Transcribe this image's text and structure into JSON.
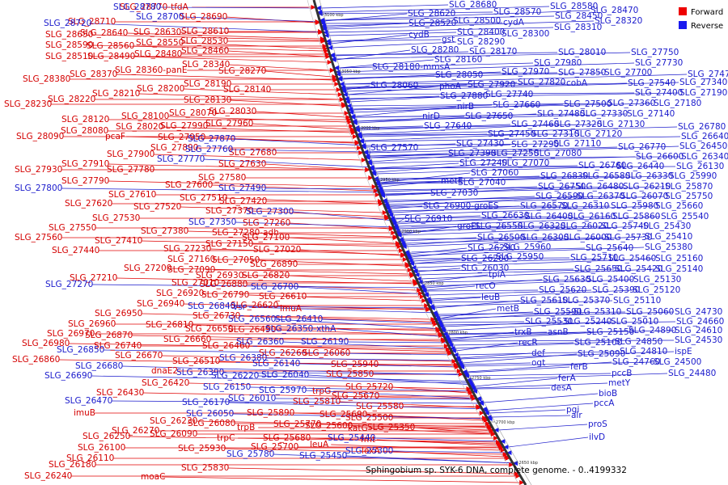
{
  "caption": "Sphingobium sp. SYK-6 DNA, complete genome. - 0..4199332",
  "legend": [
    {
      "label": "Forward",
      "color": "#ee0000"
    },
    {
      "label": "Reverse",
      "color": "#1a1aee"
    }
  ],
  "ticks": [
    "3100 kbp",
    "3050 kbp",
    "3000 kbp",
    "2950 kbp",
    "2900 kbp",
    "2850 kbp",
    "2800 kbp",
    "2750 kbp",
    "2700 kbp",
    "2650 kbp"
  ],
  "forward_labels": [
    [
      "SLG_28770-tfdA",
      148,
      12
    ],
    [
      "SLG_28690",
      222,
      24
    ],
    [
      "SLG_28710",
      84,
      30
    ],
    [
      "SLG_28640",
      99,
      44
    ],
    [
      "SLG_28610",
      224,
      42
    ],
    [
      "SLG_28650",
      56,
      46
    ],
    [
      "SLG_28630",
      165,
      43
    ],
    [
      "SLG_28550",
      168,
      56
    ],
    [
      "SLG_28530",
      223,
      54
    ],
    [
      "SLG_28590",
      56,
      59
    ],
    [
      "SLG_28560",
      107,
      60
    ],
    [
      "SLG_28460",
      224,
      66
    ],
    [
      "SLG_28510",
      56,
      73
    ],
    [
      "SLG_28490",
      108,
      73
    ],
    [
      "SLG_28480",
      166,
      70
    ],
    [
      "SLG_28340",
      225,
      83
    ],
    [
      "SLG_28360-panE",
      142,
      90
    ],
    [
      "SLG_28270",
      270,
      91
    ],
    [
      "SLG_28380",
      28,
      101
    ],
    [
      "SLG_28370",
      86,
      95
    ],
    [
      "SLG_28190",
      227,
      107
    ],
    [
      "SLG_28200",
      169,
      113
    ],
    [
      "SLG_28140",
      276,
      114
    ],
    [
      "SLG_28210",
      114,
      119
    ],
    [
      "SLG_28220",
      59,
      126
    ],
    [
      "SLG_28130",
      227,
      127
    ],
    [
      "SLG_28230",
      5,
      132
    ],
    [
      "SLG_28030",
      258,
      141
    ],
    [
      "SLG_28070",
      209,
      143
    ],
    [
      "SLG_28100",
      150,
      147
    ],
    [
      "SLG_28120",
      76,
      151
    ],
    [
      "SLG_27960",
      254,
      156
    ],
    [
      "SLG_27990",
      198,
      159
    ],
    [
      "SLG_28020",
      143,
      160
    ],
    [
      "SLG_28080",
      75,
      165
    ],
    [
      "pcaF",
      130,
      172
    ],
    [
      "SLG_28090",
      20,
      172
    ],
    [
      "SLG_27950",
      195,
      173
    ],
    [
      "SLG_27890",
      186,
      186
    ],
    [
      "SLG_27900",
      132,
      194
    ],
    [
      "SLG_27680",
      283,
      192
    ],
    [
      "SLG_27910",
      76,
      206
    ],
    [
      "SLG_27780",
      132,
      213
    ],
    [
      "SLG_27630",
      270,
      206
    ],
    [
      "SLG_27930",
      18,
      213
    ],
    [
      "SLG_27790",
      76,
      227
    ],
    [
      "SLG_27580",
      245,
      223
    ],
    [
      "SLG_27600",
      204,
      232
    ],
    [
      "SLG_27610",
      134,
      244
    ],
    [
      "SLG_27510",
      222,
      248
    ],
    [
      "SLG_27620",
      80,
      255
    ],
    [
      "SLG_27520",
      165,
      259
    ],
    [
      "SLG_27420",
      271,
      252
    ],
    [
      "SLG_27370",
      254,
      264
    ],
    [
      "SLG_27530",
      114,
      273
    ],
    [
      "SLG_27260",
      300,
      279
    ],
    [
      "SLG_27550",
      60,
      285
    ],
    [
      "SLG_27380",
      174,
      289
    ],
    [
      "SLG_27560",
      18,
      297
    ],
    [
      "SLG_27410",
      117,
      301
    ],
    [
      "SLG_27280-adh",
      262,
      291
    ],
    [
      "SLG_27100",
      299,
      297
    ],
    [
      "SLG_27150",
      254,
      305
    ],
    [
      "SLG_27230",
      202,
      311
    ],
    [
      "SLG_27440",
      64,
      313
    ],
    [
      "SLG_27020",
      313,
      312
    ],
    [
      "SLG_27160",
      207,
      324
    ],
    [
      "SLG_27050",
      262,
      325
    ],
    [
      "SLG_26890",
      309,
      330
    ],
    [
      "SLG_27200",
      153,
      335
    ],
    [
      "SLG_27090",
      207,
      337
    ],
    [
      "SLG_27210",
      86,
      347
    ],
    [
      "SLG_26930",
      242,
      344
    ],
    [
      "SLG_26820",
      299,
      344
    ],
    [
      "SLG_27010",
      212,
      353
    ],
    [
      "SLG_26880",
      247,
      355
    ],
    [
      "SLG_26920",
      193,
      366
    ],
    [
      "SLG_26790",
      249,
      368
    ],
    [
      "SLG_26610",
      320,
      370
    ],
    [
      "SLG_26940",
      169,
      379
    ],
    [
      "SLG_26620",
      285,
      381
    ],
    [
      "SLG_26950",
      117,
      391
    ],
    [
      "imuA",
      346,
      385
    ],
    [
      "SLG_26730",
      238,
      394
    ],
    [
      "SLG_26960",
      84,
      404
    ],
    [
      "SLG_26810",
      180,
      405
    ],
    [
      "SLG_26650",
      229,
      410
    ],
    [
      "SLG_26490",
      282,
      411
    ],
    [
      "SLG_26970",
      58,
      416
    ],
    [
      "SLG_26870",
      105,
      418
    ],
    [
      "SLG_26660",
      202,
      423
    ],
    [
      "SLG_26980",
      27,
      428
    ],
    [
      "SLG_26740",
      116,
      431
    ],
    [
      "SLG_26460",
      250,
      431
    ],
    [
      "SLG_26260",
      320,
      440
    ],
    [
      "SLG_26670",
      142,
      443
    ],
    [
      "SLG_26060",
      374,
      440
    ],
    [
      "SLG_26860",
      15,
      448
    ],
    [
      "dnaE2",
      187,
      462
    ],
    [
      "SLG_26510",
      213,
      450
    ],
    [
      "SLG_25940",
      409,
      454
    ],
    [
      "SLG_26420",
      175,
      477
    ],
    [
      "SLG_25850",
      403,
      466
    ],
    [
      "SLG_26430",
      119,
      489
    ],
    [
      "trpG",
      386,
      487
    ],
    [
      "SLG_25720",
      427,
      482
    ],
    [
      "SLG_25670",
      410,
      493
    ],
    [
      "SLG_25810",
      362,
      500
    ],
    [
      "imuB",
      91,
      514
    ],
    [
      "SLG_25890",
      305,
      514
    ],
    [
      "SLG_25580",
      440,
      506
    ],
    [
      "SLG_25690",
      395,
      516
    ],
    [
      "SLG_25500",
      427,
      520
    ],
    [
      "SLG_26230",
      185,
      524
    ],
    [
      "SLG_26080",
      232,
      527
    ],
    [
      "SLG_25770",
      338,
      528
    ],
    [
      "trpB",
      293,
      532
    ],
    [
      "katG",
      430,
      533
    ],
    [
      "SLG_25600",
      377,
      530
    ],
    [
      "SLG_25350",
      454,
      532
    ],
    [
      "SLG_26270",
      138,
      536
    ],
    [
      "SLG_26250",
      102,
      543
    ],
    [
      "SLG_26090",
      185,
      540
    ],
    [
      "SLG_25680",
      325,
      545
    ],
    [
      "trpC",
      268,
      545
    ],
    [
      "fmt",
      446,
      547
    ],
    [
      "SLG_26100",
      96,
      557
    ],
    [
      "SLG_25930",
      220,
      558
    ],
    [
      "SLG_25700",
      310,
      556
    ],
    [
      "leuA",
      383,
      553
    ],
    [
      "SLG_26110",
      82,
      570
    ],
    [
      "lexA",
      447,
      561
    ],
    [
      "SLG_26180",
      60,
      578
    ],
    [
      "SLG_25830",
      224,
      582
    ],
    [
      "SLG_26240",
      30,
      592
    ],
    [
      "moaC",
      174,
      593
    ]
  ],
  "reverse_labels": [
    [
      "SLG_28780",
      140,
      12
    ],
    [
      "SLG_28700",
      168,
      24
    ],
    [
      "SLG_28720",
      54,
      32
    ],
    [
      "SLG_28680",
      555,
      9
    ],
    [
      "SLG_28620",
      504,
      20
    ],
    [
      "SLG_28570",
      610,
      18
    ],
    [
      "SLG_28580",
      680,
      11
    ],
    [
      "SLG_28470",
      730,
      16
    ],
    [
      "SLG_28450",
      686,
      23
    ],
    [
      "SLG_28320",
      735,
      29
    ],
    [
      "SLG_28520",
      505,
      32
    ],
    [
      "SLG_28500",
      560,
      29
    ],
    [
      "cydA",
      622,
      31
    ],
    [
      "SLG_28310",
      685,
      37
    ],
    [
      "cydB",
      505,
      46
    ],
    [
      "SLG_28400",
      565,
      43
    ],
    [
      "SLG_28300",
      620,
      45
    ],
    [
      "gst",
      546,
      52
    ],
    [
      "SLG_28290",
      565,
      55
    ],
    [
      "SLG_28280",
      508,
      65
    ],
    [
      "SLG_28170",
      580,
      67
    ],
    [
      "SLG_28160",
      537,
      77
    ],
    [
      "SLG_28010",
      690,
      68
    ],
    [
      "SLG_27750",
      780,
      68
    ],
    [
      "SLG_28180-mmsA",
      460,
      86
    ],
    [
      "SLG_27980",
      660,
      81
    ],
    [
      "SLG_27730",
      785,
      81
    ],
    [
      "SLG_28050",
      538,
      96
    ],
    [
      "SLG_27970",
      620,
      92
    ],
    [
      "SLG_27850",
      690,
      93
    ],
    [
      "SLG_27700",
      747,
      93
    ],
    [
      "SLG_27470",
      850,
      95
    ],
    [
      "SLG_28060",
      458,
      109
    ],
    [
      "phoA",
      543,
      110
    ],
    [
      "SLG_27920",
      578,
      108
    ],
    [
      "SLG_27820",
      640,
      105
    ],
    [
      "cobA",
      700,
      106
    ],
    [
      "SLG_27540",
      776,
      106
    ],
    [
      "SLG_27340",
      840,
      105
    ],
    [
      "SLG_27880",
      544,
      122
    ],
    [
      "SLG_27740",
      600,
      120
    ],
    [
      "SLG_27400",
      785,
      118
    ],
    [
      "SLG_27190",
      840,
      118
    ],
    [
      "nirB",
      565,
      135
    ],
    [
      "SLG_27660",
      609,
      133
    ],
    [
      "SLG_27500",
      697,
      132
    ],
    [
      "SLG_27360",
      751,
      131
    ],
    [
      "SLG_27180",
      808,
      131
    ],
    [
      "nirD",
      522,
      147
    ],
    [
      "SLG_27650",
      575,
      147
    ],
    [
      "SLG_27480",
      664,
      144
    ],
    [
      "SLG_27330",
      717,
      144
    ],
    [
      "SLG_27140",
      775,
      144
    ],
    [
      "SLG_27640",
      524,
      159
    ],
    [
      "SLG_27460",
      632,
      157
    ],
    [
      "SLG_27320",
      685,
      157
    ],
    [
      "SLG_27130",
      738,
      157
    ],
    [
      "SLG_26780",
      838,
      160
    ],
    [
      "SLG_27450",
      603,
      169
    ],
    [
      "SLG_27310",
      657,
      169
    ],
    [
      "SLG_27120",
      710,
      169
    ],
    [
      "SLG_26640",
      842,
      172
    ],
    [
      "SLG_27570",
      458,
      186
    ],
    [
      "SLG_27430",
      564,
      181
    ],
    [
      "SLG_27290",
      632,
      182
    ],
    [
      "SLG_27110",
      684,
      181
    ],
    [
      "SLG_26770",
      764,
      185
    ],
    [
      "SLG_26450",
      840,
      184
    ],
    [
      "SLG_27390",
      554,
      193
    ],
    [
      "SLG_27250",
      607,
      193
    ],
    [
      "SLG_27080",
      660,
      193
    ],
    [
      "SLG_26600",
      786,
      197
    ],
    [
      "SLG_26340",
      842,
      197
    ],
    [
      "SLG_27240",
      568,
      205
    ],
    [
      "SLG_27070",
      620,
      205
    ],
    [
      "SLG_26760",
      715,
      208
    ],
    [
      "SLG_26440",
      762,
      209
    ],
    [
      "SLG_26130",
      836,
      209
    ],
    [
      "metE",
      545,
      227
    ],
    [
      "SLG_27060",
      582,
      217
    ],
    [
      "SLG_26830",
      668,
      221
    ],
    [
      "SLG_26580",
      720,
      221
    ],
    [
      "SLG_26330",
      773,
      221
    ],
    [
      "SLG_25990",
      827,
      221
    ],
    [
      "SLG_27040",
      566,
      229
    ],
    [
      "SLG_26750",
      665,
      234
    ],
    [
      "SLG_26480",
      712,
      234
    ],
    [
      "SLG_26210",
      770,
      234
    ],
    [
      "SLG_25870",
      822,
      234
    ],
    [
      "SLG_27030",
      532,
      242
    ],
    [
      "SLG_26590",
      662,
      246
    ],
    [
      "SLG_26370",
      713,
      246
    ],
    [
      "SLG_26070",
      767,
      246
    ],
    [
      "SLG_25750",
      822,
      246
    ],
    [
      "SLG_26900-groES",
      523,
      258
    ],
    [
      "SLG_26570",
      643,
      258
    ],
    [
      "SLG_26310",
      694,
      258
    ],
    [
      "SLG_25980",
      755,
      258
    ],
    [
      "SLG_25660",
      810,
      258
    ],
    [
      "SLG_26630",
      595,
      270
    ],
    [
      "SLG_26400",
      649,
      271
    ],
    [
      "SLG_26160",
      702,
      271
    ],
    [
      "SLG_25860",
      757,
      271
    ],
    [
      "SLG_25540",
      817,
      271
    ],
    [
      "SLG_26910",
      500,
      274
    ],
    [
      "groEL",
      565,
      283
    ],
    [
      "SLG_26550",
      587,
      283
    ],
    [
      "SLG_26320",
      640,
      283
    ],
    [
      "SLG_26020",
      693,
      283
    ],
    [
      "SLG_25740",
      743,
      283
    ],
    [
      "SLG_25430",
      795,
      283
    ],
    [
      "SLG_26500",
      590,
      297
    ],
    [
      "SLG_26300",
      644,
      297
    ],
    [
      "SLG_26000",
      697,
      297
    ],
    [
      "SLG_25730",
      747,
      297
    ],
    [
      "SLG_25410",
      797,
      296
    ],
    [
      "SLG_27800",
      18,
      236
    ],
    [
      "SLG_27770",
      194,
      200
    ],
    [
      "SLG_27760",
      229,
      188
    ],
    [
      "SLG_27870",
      232,
      175
    ],
    [
      "SLG_27490",
      270,
      236
    ],
    [
      "SLG_27350",
      233,
      278
    ],
    [
      "SLG_27300",
      304,
      265
    ],
    [
      "SLG_27270",
      56,
      355
    ],
    [
      "SLG_26700",
      310,
      358
    ],
    [
      "SLG_26840",
      232,
      382
    ],
    [
      "vsr",
      288,
      383
    ],
    [
      "SLG_26560",
      282,
      398
    ],
    [
      "SLG_26410",
      340,
      398
    ],
    [
      "SLG_26350-xthA",
      328,
      410
    ],
    [
      "SLG_26380",
      271,
      446
    ],
    [
      "SLG_26360",
      292,
      426
    ],
    [
      "SLG_26190",
      372,
      426
    ],
    [
      "SLG_26850",
      70,
      436
    ],
    [
      "SLG_26680",
      93,
      456
    ],
    [
      "SLG_26140",
      312,
      453
    ],
    [
      "SLG_26690",
      55,
      468
    ],
    [
      "SLG_26390",
      218,
      464
    ],
    [
      "SLG_26220",
      261,
      468
    ],
    [
      "SLG_26040",
      323,
      467
    ],
    [
      "SLG_26150",
      251,
      482
    ],
    [
      "SLG_25970",
      320,
      486
    ],
    [
      "SLG_26470",
      80,
      499
    ],
    [
      "SLG_26170",
      225,
      501
    ],
    [
      "SLG_26010",
      282,
      496
    ],
    [
      "SLG_26050",
      230,
      515
    ],
    [
      "SLG_25780",
      280,
      565
    ],
    [
      "SLG_25440",
      405,
      545
    ],
    [
      "SLG_25450",
      370,
      567
    ],
    [
      "SLG_25300",
      427,
      561
    ],
    [
      "SLG_26290",
      578,
      310
    ],
    [
      "SLG_25960",
      622,
      309
    ],
    [
      "SLG_25640",
      724,
      310
    ],
    [
      "SLG_25380",
      797,
      309
    ],
    [
      "SLG_26200",
      570,
      323
    ],
    [
      "SLG_25950",
      613,
      321
    ],
    [
      "SLG_25710",
      705,
      322
    ],
    [
      "SLG_25460",
      752,
      323
    ],
    [
      "SLG_25160",
      810,
      323
    ],
    [
      "SLG_26030",
      570,
      335
    ],
    [
      "tpiA",
      604,
      343
    ],
    [
      "SLG_25650",
      710,
      336
    ],
    [
      "SLG_25420",
      760,
      336
    ],
    [
      "SLG_25140",
      810,
      336
    ],
    [
      "recO",
      588,
      357
    ],
    [
      "SLG_25630",
      671,
      349
    ],
    [
      "SLG_25400",
      725,
      349
    ],
    [
      "SLG_25130",
      783,
      349
    ],
    [
      "SLG_25620",
      666,
      362
    ],
    [
      "SLG_25390",
      732,
      362
    ],
    [
      "SLG_25120",
      782,
      362
    ],
    [
      "leuB",
      595,
      371
    ],
    [
      "SLG_25610",
      643,
      375
    ],
    [
      "SLG_25370",
      695,
      375
    ],
    [
      "SLG_25110",
      758,
      375
    ],
    [
      "metB",
      614,
      385
    ],
    [
      "SLG_25590",
      660,
      389
    ],
    [
      "SLG_25310",
      709,
      389
    ],
    [
      "SLG_25060",
      774,
      389
    ],
    [
      "SLG_24730",
      834,
      389
    ],
    [
      "SLG_25530",
      649,
      401
    ],
    [
      "SLG_25240",
      697,
      401
    ],
    [
      "SLG_25010",
      755,
      401
    ],
    [
      "SLG_24660",
      836,
      401
    ],
    [
      "trxB",
      636,
      414
    ],
    [
      "asnB",
      677,
      414
    ],
    [
      "SLG_25150",
      725,
      414
    ],
    [
      "SLG_24890",
      777,
      412
    ],
    [
      "SLG_24610",
      834,
      412
    ],
    [
      "recR",
      641,
      427
    ],
    [
      "SLG_25100",
      710,
      427
    ],
    [
      "SLG_24850",
      760,
      426
    ],
    [
      "SLG_24530",
      834,
      424
    ],
    [
      "def",
      657,
      440
    ],
    [
      "SLG_25090",
      714,
      441
    ],
    [
      "SLG_24810",
      766,
      438
    ],
    [
      "ispE",
      834,
      438
    ],
    [
      "ogt",
      657,
      452
    ],
    [
      "ferB",
      705,
      457
    ],
    [
      "SLG_24760",
      757,
      451
    ],
    [
      "SLG_24500",
      808,
      451
    ],
    [
      "ferA",
      690,
      471
    ],
    [
      "pccB",
      756,
      465
    ],
    [
      "SLG_24480",
      826,
      465
    ],
    [
      "desA",
      681,
      483
    ],
    [
      "metY",
      752,
      477
    ],
    [
      "bioB",
      740,
      490
    ],
    [
      "pgi",
      700,
      510
    ],
    [
      "pccA",
      734,
      502
    ],
    [
      "alr",
      706,
      517
    ],
    [
      "proS",
      727,
      528
    ],
    [
      "ilvD",
      728,
      544
    ]
  ]
}
